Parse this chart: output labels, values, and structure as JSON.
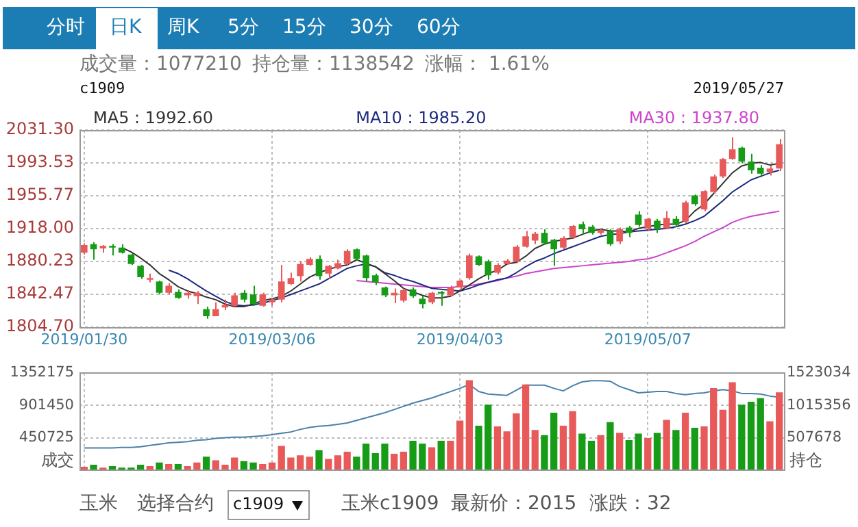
{
  "chart_data": [
    {
      "type": "candlestick",
      "categories": [
        "2019/01/30",
        null,
        null,
        null,
        null,
        null,
        null,
        null,
        null,
        null,
        null,
        null,
        null,
        null,
        null,
        null,
        null,
        null,
        null,
        null,
        "2019/03/06",
        null,
        null,
        null,
        null,
        null,
        null,
        null,
        null,
        null,
        null,
        null,
        null,
        null,
        null,
        null,
        null,
        null,
        null,
        null,
        "2019/04/03",
        null,
        null,
        null,
        null,
        null,
        null,
        null,
        null,
        null,
        null,
        null,
        null,
        null,
        null,
        null,
        null,
        null,
        null,
        null,
        "2019/05/07",
        null,
        null,
        null,
        null,
        null,
        null,
        null,
        null,
        null,
        null,
        null,
        null,
        null,
        null
      ],
      "ohlc": [
        [
          1890,
          1901,
          1888,
          1899
        ],
        [
          1900,
          1902,
          1882,
          1894
        ],
        [
          1895,
          1899,
          1890,
          1898
        ],
        [
          1898,
          1900,
          1887,
          1896
        ],
        [
          1896,
          1900,
          1889,
          1890
        ],
        [
          1888,
          1889,
          1876,
          1877
        ],
        [
          1875,
          1876,
          1860,
          1862
        ],
        [
          1859,
          1866,
          1856,
          1861
        ],
        [
          1857,
          1858,
          1842,
          1844
        ],
        [
          1844,
          1855,
          1842,
          1852
        ],
        [
          1845,
          1848,
          1837,
          1838
        ],
        [
          1841,
          1847,
          1837,
          1844
        ],
        [
          1840,
          1846,
          1831,
          1844
        ],
        [
          1825,
          1828,
          1814,
          1817
        ],
        [
          1817,
          1833,
          1817,
          1825
        ],
        [
          1827,
          1836,
          1824,
          1830
        ],
        [
          1829,
          1844,
          1828,
          1841
        ],
        [
          1844,
          1847,
          1833,
          1836
        ],
        [
          1842,
          1852,
          1829,
          1831
        ],
        [
          1829,
          1844,
          1828,
          1842
        ],
        [
          1833,
          1838,
          1829,
          1836
        ],
        [
          1836,
          1876,
          1833,
          1857
        ],
        [
          1854,
          1867,
          1853,
          1861
        ],
        [
          1863,
          1880,
          1857,
          1877
        ],
        [
          1876,
          1885,
          1875,
          1883
        ],
        [
          1883,
          1887,
          1859,
          1863
        ],
        [
          1866,
          1876,
          1860,
          1875
        ],
        [
          1872,
          1882,
          1871,
          1878
        ],
        [
          1877,
          1894,
          1875,
          1892
        ],
        [
          1894,
          1895,
          1881,
          1883
        ],
        [
          1887,
          1888,
          1857,
          1861
        ],
        [
          1864,
          1866,
          1853,
          1856
        ],
        [
          1850,
          1851,
          1839,
          1841
        ],
        [
          1841,
          1849,
          1832,
          1844
        ],
        [
          1835,
          1849,
          1833,
          1847
        ],
        [
          1848,
          1850,
          1838,
          1840
        ],
        [
          1837,
          1840,
          1826,
          1831
        ],
        [
          1833,
          1845,
          1831,
          1844
        ],
        [
          1845,
          1846,
          1829,
          1843
        ],
        [
          1841,
          1852,
          1840,
          1850
        ],
        [
          1850,
          1859,
          1848,
          1858
        ],
        [
          1861,
          1889,
          1859,
          1887
        ],
        [
          1886,
          1887,
          1875,
          1876
        ],
        [
          1880,
          1882,
          1859,
          1864
        ],
        [
          1867,
          1878,
          1865,
          1876
        ],
        [
          1877,
          1883,
          1876,
          1881
        ],
        [
          1880,
          1899,
          1878,
          1897
        ],
        [
          1897,
          1915,
          1896,
          1909
        ],
        [
          1904,
          1914,
          1900,
          1912
        ],
        [
          1913,
          1917,
          1899,
          1901
        ],
        [
          1905,
          1906,
          1875,
          1894
        ],
        [
          1896,
          1909,
          1894,
          1907
        ],
        [
          1908,
          1922,
          1906,
          1921
        ],
        [
          1923,
          1926,
          1911,
          1917
        ],
        [
          1920,
          1922,
          1911,
          1913
        ],
        [
          1913,
          1918,
          1911,
          1916
        ],
        [
          1915,
          1917,
          1898,
          1900
        ],
        [
          1903,
          1919,
          1900,
          1917
        ],
        [
          1919,
          1921,
          1908,
          1913
        ],
        [
          1934,
          1938,
          1920,
          1922
        ],
        [
          1918,
          1930,
          1915,
          1929
        ],
        [
          1927,
          1929,
          1913,
          1918
        ],
        [
          1918,
          1938,
          1917,
          1930
        ],
        [
          1929,
          1932,
          1920,
          1922
        ],
        [
          1926,
          1950,
          1924,
          1948
        ],
        [
          1956,
          1957,
          1944,
          1946
        ],
        [
          1940,
          1962,
          1938,
          1961
        ],
        [
          1960,
          1980,
          1958,
          1978
        ],
        [
          1978,
          1999,
          1976,
          1998
        ],
        [
          1998,
          2023,
          1997,
          2009
        ],
        [
          2011,
          2012,
          1993,
          1995
        ],
        [
          1995,
          2004,
          1981,
          1985
        ],
        [
          1988,
          1991,
          1977,
          1981
        ],
        [
          1983,
          1990,
          1979,
          1987
        ],
        [
          1987,
          2021,
          1984,
          2015
        ]
      ],
      "colors": [
        "#e85a5a",
        "#169c16",
        "#e85a5a",
        "#169c16",
        "#169c16",
        "#169c16",
        "#169c16",
        "#e85a5a",
        "#169c16",
        "#e85a5a",
        "#169c16",
        "#e85a5a",
        "#e85a5a",
        "#169c16",
        "#e85a5a",
        "#e85a5a",
        "#e85a5a",
        "#169c16",
        "#169c16",
        "#e85a5a",
        "#e85a5a",
        "#e85a5a",
        "#e85a5a",
        "#e85a5a",
        "#e85a5a",
        "#169c16",
        "#e85a5a",
        "#e85a5a",
        "#e85a5a",
        "#169c16",
        "#169c16",
        "#169c16",
        "#169c16",
        "#e85a5a",
        "#e85a5a",
        "#169c16",
        "#169c16",
        "#e85a5a",
        "#169c16",
        "#e85a5a",
        "#e85a5a",
        "#e85a5a",
        "#169c16",
        "#169c16",
        "#e85a5a",
        "#e85a5a",
        "#e85a5a",
        "#e85a5a",
        "#e85a5a",
        "#169c16",
        "#169c16",
        "#e85a5a",
        "#e85a5a",
        "#169c16",
        "#169c16",
        "#e85a5a",
        "#169c16",
        "#e85a5a",
        "#169c16",
        "#169c16",
        "#e85a5a",
        "#169c16",
        "#e85a5a",
        "#169c16",
        "#e85a5a",
        "#169c16",
        "#e85a5a",
        "#e85a5a",
        "#e85a5a",
        "#e85a5a",
        "#169c16",
        "#169c16",
        "#169c16",
        "#e85a5a",
        "#e85a5a"
      ],
      "series": [
        {
          "type": "line",
          "name": "MA5 : 1992.60",
          "color": "#333333",
          "values": [
            null,
            null,
            null,
            null,
            1896,
            1891,
            1884,
            1876,
            1866,
            1859,
            1851,
            1846,
            1843,
            1839,
            1836,
            1831,
            1828,
            1828,
            1831,
            1835,
            1837,
            1840,
            1846,
            1854,
            1862,
            1867,
            1871,
            1874,
            1876,
            1882,
            1878,
            1874,
            1866,
            1858,
            1849,
            1845,
            1841,
            1838,
            1838,
            1840,
            1846,
            1853,
            1860,
            1866,
            1870,
            1877,
            1879,
            1886,
            1895,
            1900,
            1903,
            1905,
            1907,
            1911,
            1915,
            1917,
            1915,
            1915,
            1914,
            1918,
            1920,
            1922,
            1923,
            1923,
            1927,
            1938,
            1946,
            1958,
            1970,
            1982,
            1990,
            1993,
            1994,
            1991,
            1993
          ]
        },
        {
          "type": "line",
          "name": "MA10 : 1985.20",
          "color": "#1c2a80",
          "values": [
            null,
            null,
            null,
            null,
            null,
            null,
            null,
            null,
            null,
            1870,
            1866,
            1860,
            1853,
            1846,
            1840,
            1834,
            1830,
            1829,
            1830,
            1832,
            1835,
            1838,
            1842,
            1846,
            1850,
            1854,
            1860,
            1866,
            1872,
            1875,
            1877,
            1874,
            1867,
            1864,
            1860,
            1857,
            1853,
            1849,
            1848,
            1847,
            1846,
            1849,
            1853,
            1856,
            1859,
            1861,
            1867,
            1874,
            1880,
            1884,
            1889,
            1893,
            1897,
            1901,
            1905,
            1909,
            1911,
            1912,
            1914,
            1915,
            1916,
            1917,
            1918,
            1920,
            1923,
            1927,
            1932,
            1941,
            1950,
            1960,
            1967,
            1974,
            1978,
            1982,
            1985
          ]
        },
        {
          "type": "line",
          "name": "MA30 : 1937.80",
          "color": "#cc44cc",
          "values": [
            null,
            null,
            null,
            null,
            null,
            null,
            null,
            null,
            null,
            null,
            null,
            null,
            null,
            null,
            null,
            null,
            null,
            null,
            null,
            null,
            null,
            null,
            null,
            null,
            null,
            null,
            null,
            null,
            null,
            1858,
            1857,
            1856,
            1855,
            1854,
            1853,
            1852,
            1851,
            1850,
            1850,
            1850,
            1851,
            1852,
            1854,
            1856,
            1858,
            1861,
            1863,
            1866,
            1868,
            1870,
            1872,
            1873,
            1874,
            1875,
            1876,
            1877,
            1878,
            1879,
            1880,
            1882,
            1883,
            1886,
            1890,
            1894,
            1898,
            1903,
            1909,
            1914,
            1919,
            1925,
            1929,
            1932,
            1934,
            1936,
            1938
          ]
        }
      ],
      "ylim": [
        1804.7,
        2031.3
      ],
      "yticks": [
        {
          "value": 1804.7,
          "label": "1804.70"
        },
        {
          "value": 1842.47,
          "label": "1842.47"
        },
        {
          "value": 1880.23,
          "label": "1880.23"
        },
        {
          "value": 1918,
          "label": "1918.00"
        },
        {
          "value": 1955.77,
          "label": "1955.77"
        },
        {
          "value": 1993.53,
          "label": "1993.53"
        },
        {
          "value": 2031.3,
          "label": "2031.30"
        }
      ],
      "grid": true,
      "legend": "top",
      "annotations": [
        "分时",
        "日K",
        "周K",
        "5分",
        "15分",
        "30分",
        "60分",
        "成交量：1077210",
        "持仓量：1138542",
        "涨幅： 1.61%",
        "c1909",
        "2019/05/27"
      ]
    },
    {
      "type": "bar",
      "categories": [
        "2019/01/30",
        null,
        null,
        null,
        null,
        null,
        null,
        null,
        null,
        null,
        null,
        null,
        null,
        null,
        null,
        null,
        null,
        null,
        null,
        null,
        "2019/03/06",
        null,
        null,
        null,
        null,
        null,
        null,
        null,
        null,
        null,
        null,
        null,
        null,
        null,
        null,
        null,
        null,
        null,
        null,
        null,
        "2019/04/03",
        null,
        null,
        null,
        null,
        null,
        null,
        null,
        null,
        null,
        null,
        null,
        null,
        null,
        null,
        null,
        null,
        null,
        null,
        null,
        "2019/05/07",
        null,
        null,
        null,
        null,
        null,
        null,
        null,
        null,
        null,
        null,
        null,
        null,
        null,
        null
      ],
      "series": [
        {
          "type": "bar",
          "colors": [
            "#e85a5a",
            "#169c16",
            "#e85a5a",
            "#169c16",
            "#169c16",
            "#169c16",
            "#169c16",
            "#e85a5a",
            "#169c16",
            "#e85a5a",
            "#169c16",
            "#e85a5a",
            "#e85a5a",
            "#169c16",
            "#e85a5a",
            "#e85a5a",
            "#e85a5a",
            "#169c16",
            "#169c16",
            "#e85a5a",
            "#e85a5a",
            "#e85a5a",
            "#e85a5a",
            "#e85a5a",
            "#e85a5a",
            "#169c16",
            "#e85a5a",
            "#e85a5a",
            "#e85a5a",
            "#169c16",
            "#169c16",
            "#169c16",
            "#169c16",
            "#e85a5a",
            "#e85a5a",
            "#169c16",
            "#169c16",
            "#e85a5a",
            "#169c16",
            "#e85a5a",
            "#e85a5a",
            "#e85a5a",
            "#169c16",
            "#169c16",
            "#e85a5a",
            "#e85a5a",
            "#e85a5a",
            "#e85a5a",
            "#e85a5a",
            "#169c16",
            "#169c16",
            "#e85a5a",
            "#e85a5a",
            "#169c16",
            "#169c16",
            "#e85a5a",
            "#169c16",
            "#e85a5a",
            "#169c16",
            "#169c16",
            "#e85a5a",
            "#169c16",
            "#e85a5a",
            "#169c16",
            "#e85a5a",
            "#169c16",
            "#e85a5a",
            "#e85a5a",
            "#e85a5a",
            "#e85a5a",
            "#169c16",
            "#169c16",
            "#169c16",
            "#e85a5a",
            "#e85a5a"
          ],
          "values": [
            50000,
            80000,
            40000,
            60000,
            40000,
            40000,
            80000,
            60000,
            110000,
            90000,
            90000,
            60000,
            110000,
            190000,
            140000,
            80000,
            180000,
            130000,
            110000,
            90000,
            110000,
            340000,
            180000,
            210000,
            190000,
            280000,
            160000,
            210000,
            260000,
            190000,
            370000,
            240000,
            370000,
            230000,
            260000,
            410000,
            370000,
            320000,
            410000,
            410000,
            690000,
            1250000,
            620000,
            910000,
            610000,
            540000,
            790000,
            1190000,
            560000,
            490000,
            800000,
            620000,
            820000,
            510000,
            410000,
            490000,
            670000,
            520000,
            420000,
            510000,
            450000,
            520000,
            700000,
            560000,
            800000,
            590000,
            610000,
            1140000,
            840000,
            1220000,
            910000,
            950000,
            1000000,
            680000,
            1080000
          ]
        },
        {
          "type": "line",
          "axis": "y2",
          "color": "#4a80aa",
          "values": [
            350000,
            350000,
            350000,
            350000,
            360000,
            360000,
            370000,
            390000,
            410000,
            430000,
            440000,
            450000,
            470000,
            480000,
            500000,
            510000,
            520000,
            520000,
            530000,
            540000,
            560000,
            580000,
            600000,
            640000,
            670000,
            690000,
            700000,
            720000,
            740000,
            780000,
            820000,
            860000,
            900000,
            950000,
            1000000,
            1050000,
            1090000,
            1130000,
            1180000,
            1230000,
            1280000,
            1340000,
            1230000,
            1190000,
            1180000,
            1170000,
            1250000,
            1330000,
            1330000,
            1330000,
            1280000,
            1240000,
            1320000,
            1380000,
            1400000,
            1400000,
            1390000,
            1310000,
            1260000,
            1210000,
            1220000,
            1230000,
            1230000,
            1200000,
            1180000,
            1200000,
            1210000,
            1240000,
            1260000,
            1240000,
            1200000,
            1200000,
            1190000,
            1160000,
            1140000
          ]
        }
      ],
      "ylabel": "成交",
      "y2label": "持仓",
      "ylim": [
        0,
        1352175
      ],
      "yticks": [
        450725,
        901450,
        1352175
      ],
      "y2lim": [
        0,
        1523034
      ],
      "y2ticks": [
        507678,
        1015356,
        1523034
      ],
      "grid": true,
      "tick_labels": "y",
      "annotations": [
        "玉米",
        "选择合约",
        "c1909",
        "玉米c1909",
        "最新价：2015",
        "涨跌：32"
      ]
    }
  ]
}
